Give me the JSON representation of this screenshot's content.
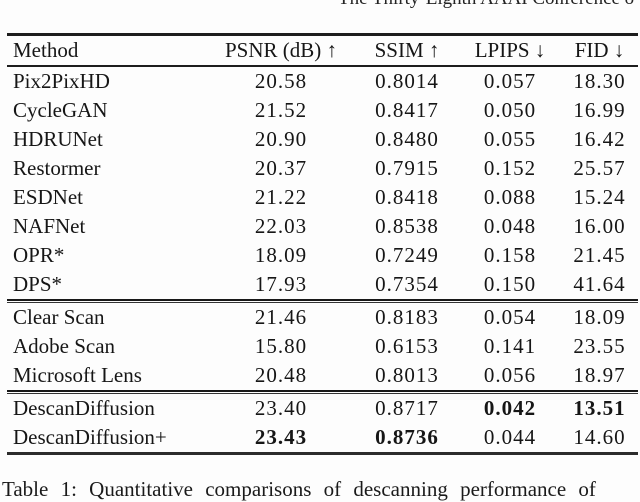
{
  "page_header": {
    "clipped_text": "The Thirty-Eighth AAAI Conference o"
  },
  "table": {
    "header": {
      "method_label": "Method",
      "metric_labels": [
        "PSNR (dB) ↑",
        "SSIM ↑",
        "LPIPS ↓",
        "FID ↓"
      ]
    },
    "groups": [
      {
        "name": "learning-baselines",
        "rows": [
          {
            "method": "Pix2PixHD",
            "values": [
              "20.58",
              "0.8014",
              "0.057",
              "18.30"
            ],
            "bold": [
              false,
              false,
              false,
              false
            ]
          },
          {
            "method": "CycleGAN",
            "values": [
              "21.52",
              "0.8417",
              "0.050",
              "16.99"
            ],
            "bold": [
              false,
              false,
              false,
              false
            ]
          },
          {
            "method": "HDRUNet",
            "values": [
              "20.90",
              "0.8480",
              "0.055",
              "16.42"
            ],
            "bold": [
              false,
              false,
              false,
              false
            ]
          },
          {
            "method": "Restormer",
            "values": [
              "20.37",
              "0.7915",
              "0.152",
              "25.57"
            ],
            "bold": [
              false,
              false,
              false,
              false
            ]
          },
          {
            "method": "ESDNet",
            "values": [
              "21.22",
              "0.8418",
              "0.088",
              "15.24"
            ],
            "bold": [
              false,
              false,
              false,
              false
            ]
          },
          {
            "method": "NAFNet",
            "values": [
              "22.03",
              "0.8538",
              "0.048",
              "16.00"
            ],
            "bold": [
              false,
              false,
              false,
              false
            ]
          },
          {
            "method": "OPR*",
            "values": [
              "18.09",
              "0.7249",
              "0.158",
              "21.45"
            ],
            "bold": [
              false,
              false,
              false,
              false
            ]
          },
          {
            "method": "DPS*",
            "values": [
              "17.93",
              "0.7354",
              "0.150",
              "41.64"
            ],
            "bold": [
              false,
              false,
              false,
              false
            ]
          }
        ]
      },
      {
        "name": "commercial-apps",
        "rows": [
          {
            "method": "Clear Scan",
            "values": [
              "21.46",
              "0.8183",
              "0.054",
              "18.09"
            ],
            "bold": [
              false,
              false,
              false,
              false
            ]
          },
          {
            "method": "Adobe Scan",
            "values": [
              "15.80",
              "0.6153",
              "0.141",
              "23.55"
            ],
            "bold": [
              false,
              false,
              false,
              false
            ]
          },
          {
            "method": "Microsoft Lens",
            "values": [
              "20.48",
              "0.8013",
              "0.056",
              "18.97"
            ],
            "bold": [
              false,
              false,
              false,
              false
            ]
          }
        ]
      },
      {
        "name": "ours",
        "rows": [
          {
            "method": "DescanDiffusion",
            "values": [
              "23.40",
              "0.8717",
              "0.042",
              "13.51"
            ],
            "bold": [
              false,
              false,
              true,
              true
            ]
          },
          {
            "method": "DescanDiffusion+",
            "values": [
              "23.43",
              "0.8736",
              "0.044",
              "14.60"
            ],
            "bold": [
              true,
              true,
              false,
              false
            ]
          }
        ]
      }
    ]
  },
  "caption": {
    "clipped_text": "Table 1: Quantitative comparisons of descanning performance of"
  }
}
